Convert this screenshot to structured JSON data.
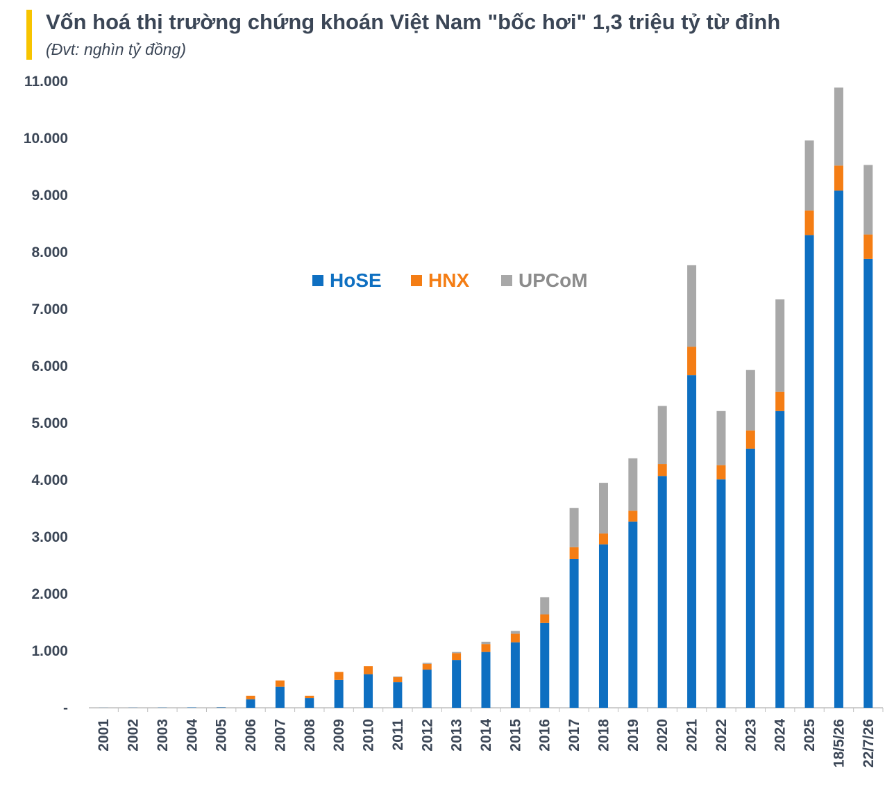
{
  "header": {
    "title": "Vốn hoá thị trường chứng khoán Việt Nam \"bốc hơi\" 1,3 triệu tỷ từ đỉnh",
    "subtitle": "(Đvt: nghìn tỷ đồng)"
  },
  "colors": {
    "accent": "#f7c400",
    "text": "#3b4656",
    "hose": "#0e6fc1",
    "hnx": "#f47d14",
    "upcom": "#a8a8a8",
    "axis": "#bfbfbf"
  },
  "chart_data": {
    "type": "bar",
    "stacked": true,
    "title": "Vốn hoá thị trường chứng khoán Việt Nam \"bốc hơi\" 1,3 triệu tỷ từ đỉnh",
    "ylabel": "",
    "xlabel": "",
    "ylim": [
      0,
      11000
    ],
    "yticks": [
      {
        "value": 0,
        "label": "-"
      },
      {
        "value": 1000,
        "label": "1.000"
      },
      {
        "value": 2000,
        "label": "2.000"
      },
      {
        "value": 3000,
        "label": "3.000"
      },
      {
        "value": 4000,
        "label": "4.000"
      },
      {
        "value": 5000,
        "label": "5.000"
      },
      {
        "value": 6000,
        "label": "6.000"
      },
      {
        "value": 7000,
        "label": "7.000"
      },
      {
        "value": 8000,
        "label": "8.000"
      },
      {
        "value": 9000,
        "label": "9.000"
      },
      {
        "value": 10000,
        "label": "10.000"
      },
      {
        "value": 11000,
        "label": "11.000"
      }
    ],
    "grid": false,
    "legend_position": "top-center",
    "categories": [
      "2001",
      "2002",
      "2003",
      "2004",
      "2005",
      "2006",
      "2007",
      "2008",
      "2009",
      "2010",
      "2011",
      "2012",
      "2013",
      "2014",
      "2015",
      "2016",
      "2017",
      "2018",
      "2019",
      "2020",
      "2021",
      "2022",
      "2023",
      "2024",
      "2025",
      "18/5/26",
      "22/7/26"
    ],
    "series": [
      {
        "name": "HoSE",
        "color": "#0e6fc1",
        "values": [
          1,
          2,
          3,
          5,
          7,
          150,
          370,
          170,
          490,
          590,
          450,
          670,
          840,
          980,
          1150,
          1490,
          2610,
          2870,
          3270,
          4070,
          5840,
          4010,
          4550,
          5210,
          8300,
          9080,
          7880
        ]
      },
      {
        "name": "HNX",
        "color": "#f47d14",
        "values": [
          0,
          0,
          0,
          0,
          1,
          60,
          110,
          40,
          140,
          140,
          90,
          100,
          120,
          140,
          150,
          150,
          210,
          190,
          190,
          210,
          500,
          250,
          320,
          340,
          430,
          440,
          430
        ]
      },
      {
        "name": "UPCoM",
        "color": "#a8a8a8",
        "values": [
          0,
          0,
          0,
          0,
          0,
          0,
          0,
          0,
          0,
          0,
          10,
          20,
          20,
          40,
          50,
          300,
          690,
          890,
          920,
          1020,
          1430,
          950,
          1060,
          1620,
          1230,
          1370,
          1220
        ]
      }
    ]
  }
}
